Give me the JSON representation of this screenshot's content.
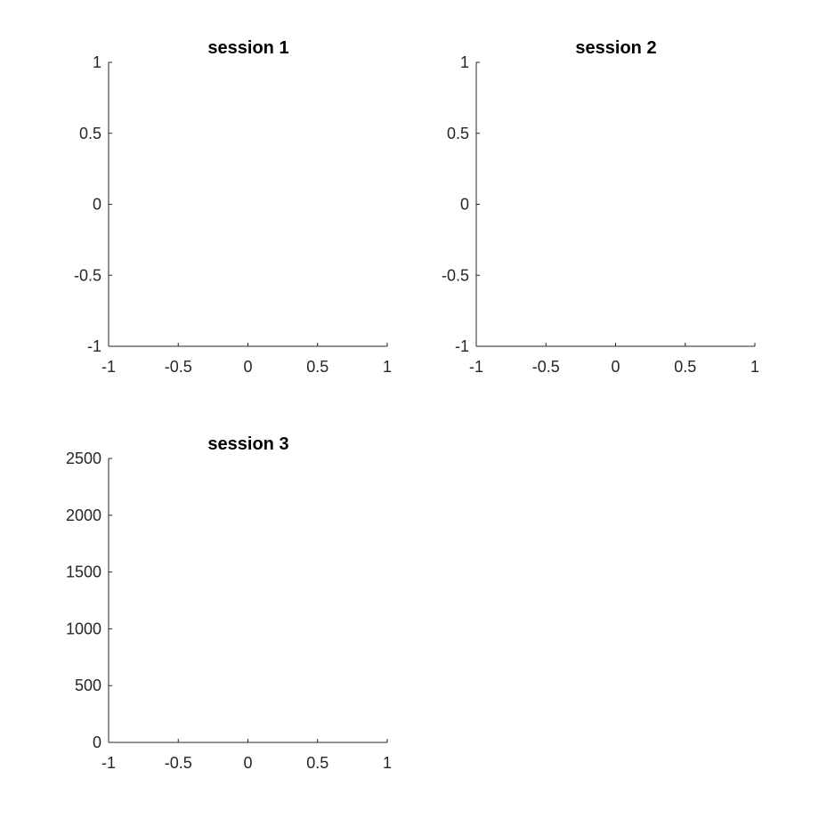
{
  "chart_data": [
    {
      "type": "scatter",
      "title": "session 1",
      "xlabel": "",
      "ylabel": "",
      "xlim": [
        -1,
        1
      ],
      "ylim": [
        -1,
        1
      ],
      "xticks": [
        -1,
        -0.5,
        0,
        0.5,
        1
      ],
      "yticks": [
        -1,
        -0.5,
        0,
        0.5,
        1
      ],
      "grid": false,
      "series": []
    },
    {
      "type": "scatter",
      "title": "session 2",
      "xlabel": "",
      "ylabel": "",
      "xlim": [
        -1,
        1
      ],
      "ylim": [
        -1,
        1
      ],
      "xticks": [
        -1,
        -0.5,
        0,
        0.5,
        1
      ],
      "yticks": [
        -1,
        -0.5,
        0,
        0.5,
        1
      ],
      "grid": false,
      "series": []
    },
    {
      "type": "scatter",
      "title": "session 3",
      "xlabel": "",
      "ylabel": "",
      "xlim": [
        -1,
        1
      ],
      "ylim": [
        0,
        2500
      ],
      "xticks": [
        -1,
        -0.5,
        0,
        0.5,
        1
      ],
      "yticks": [
        0,
        500,
        1000,
        1500,
        2000,
        2500
      ],
      "grid": false,
      "series": []
    }
  ],
  "colors": {
    "axis": "#262626",
    "title": "#000000",
    "background": "#ffffff"
  }
}
